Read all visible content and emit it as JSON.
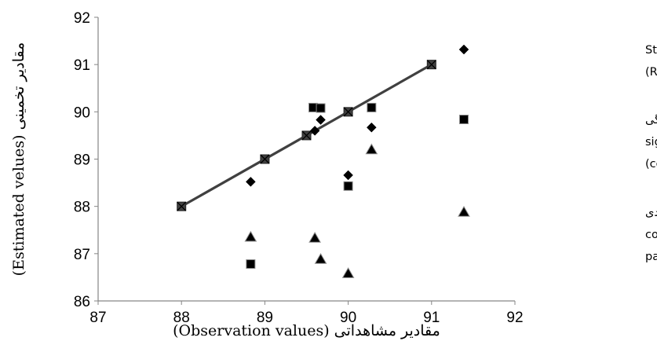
{
  "chart_data": {
    "type": "scatter",
    "title": "",
    "xlabel": "مقادیر مشاهداتی (Observation values)",
    "ylabel": "مقادیر تخمینی (Estimated velues)",
    "xlim": [
      87,
      92
    ],
    "ylim": [
      86,
      92
    ],
    "xticks": [
      "87",
      "88",
      "89",
      "90",
      "91",
      "92"
    ],
    "yticks": [
      "86",
      "87",
      "88",
      "89",
      "90",
      "91",
      "92"
    ],
    "grid": false,
    "legend_position": "right",
    "reference_line": {
      "x": [
        88,
        91
      ],
      "y": [
        88,
        91
      ],
      "marker": "x-square"
    },
    "reference_points": [
      {
        "x": 88,
        "y": 88
      },
      {
        "x": 89,
        "y": 89
      },
      {
        "x": 89.5,
        "y": 89.5
      },
      {
        "x": 90,
        "y": 90
      },
      {
        "x": 91,
        "y": 91
      }
    ],
    "series": [
      {
        "name": "رگرسیون گام به گام ( Stepwise Regression)",
        "legend_lines": [
          "رگرسیون گام به گام ( Stepwise",
          "(Regression"
        ],
        "marker": "diamond",
        "color": "#000000",
        "points": [
          {
            "x": 88.83,
            "y": 88.52
          },
          {
            "x": 89.6,
            "y": 89.6
          },
          {
            "x": 89.67,
            "y": 89.83
          },
          {
            "x": 90,
            "y": 88.66
          },
          {
            "x": 90.28,
            "y": 89.67
          }
        ]
      },
      {
        "name": "معنی داری ضریب همبستگی ( significance of correlation coefficient)",
        "legend_lines": [
          "معنی داری ضریب همبستگی",
          "significance of correlation (",
          "(coefficient"
        ],
        "marker": "square",
        "color": "#000000",
        "points": [
          {
            "x": 88.83,
            "y": 86.78
          },
          {
            "x": 89.58,
            "y": 90.09
          },
          {
            "x": 89.67,
            "y": 90.08
          },
          {
            "x": 90,
            "y": 88.43
          },
          {
            "x": 90.28,
            "y": 90.09
          }
        ]
      },
      {
        "name": "تعداد معین پارامتر ورودی ( constant number of input parameters)",
        "legend_lines": [
          "تعداد معین پارامتر ورودی",
          "constant number of input (",
          "parameters)"
        ],
        "marker": "triangle",
        "color": "#000000",
        "points": [
          {
            "x": 88.83,
            "y": 87.35
          },
          {
            "x": 89.6,
            "y": 87.33
          },
          {
            "x": 89.67,
            "y": 86.88
          },
          {
            "x": 90,
            "y": 86.58
          },
          {
            "x": 90.28,
            "y": 89.2
          }
        ]
      }
    ]
  }
}
